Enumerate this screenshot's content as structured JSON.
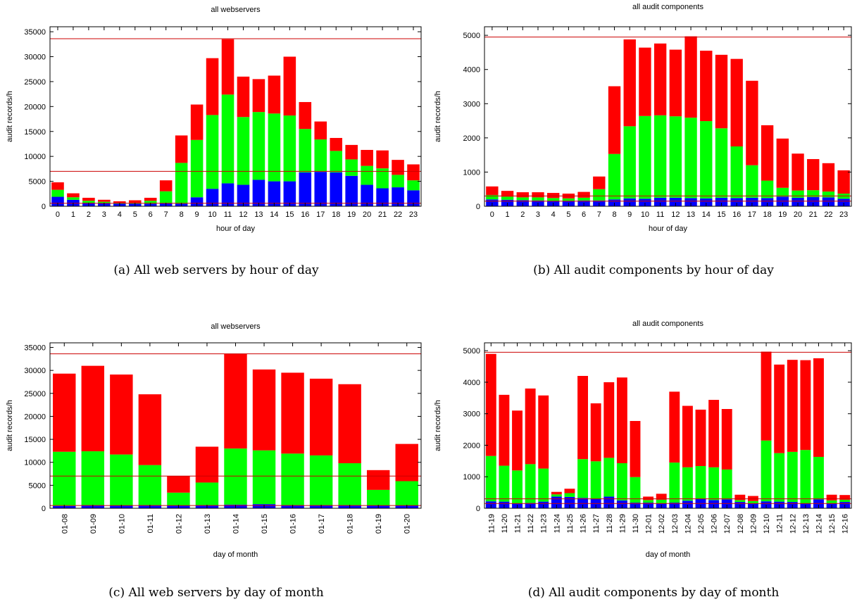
{
  "colors": {
    "series_top": "#ff0000",
    "series_middle": "#00ff00",
    "series_bottom": "#0000ff",
    "reference_line": "#cc0000"
  },
  "captions": {
    "a": "(a) All web servers by hour of day",
    "b": "(b) All audit components by hour of day",
    "c": "(c) All web servers by day of month",
    "d": "(d) All audit components by day of month"
  },
  "chart_data": [
    {
      "id": "a",
      "type": "bar",
      "stacked": true,
      "title": "all webservers",
      "xlabel": "hour of day",
      "ylabel": "audit records/h",
      "ylim": [
        0,
        36000
      ],
      "yticks": [
        0,
        5000,
        10000,
        15000,
        20000,
        25000,
        30000,
        35000
      ],
      "rotate_x_labels": false,
      "categories": [
        "0",
        "1",
        "2",
        "3",
        "4",
        "5",
        "6",
        "7",
        "8",
        "9",
        "10",
        "11",
        "12",
        "13",
        "14",
        "15",
        "16",
        "17",
        "18",
        "19",
        "20",
        "21",
        "22",
        "23"
      ],
      "series": [
        {
          "values": [
            1900,
            1300,
            700,
            600,
            500,
            500,
            500,
            600,
            500,
            1800,
            3500,
            4600,
            4300,
            5300,
            5000,
            5000,
            6800,
            6900,
            6800,
            6100,
            4300,
            3600,
            3800,
            3200
          ]
        },
        {
          "values": [
            1400,
            500,
            400,
            300,
            200,
            200,
            600,
            2400,
            8200,
            11500,
            14800,
            17800,
            13600,
            13600,
            13600,
            13200,
            8700,
            6500,
            4300,
            3300,
            3800,
            4000,
            2500,
            2000
          ]
        },
        {
          "values": [
            1500,
            800,
            600,
            400,
            300,
            500,
            600,
            2200,
            5500,
            7100,
            11400,
            11100,
            8100,
            6600,
            7600,
            11800,
            5400,
            3600,
            2600,
            2900,
            3200,
            3600,
            3000,
            3200
          ]
        }
      ],
      "reference_lines": [
        33600,
        7000,
        600
      ]
    },
    {
      "id": "b",
      "type": "bar",
      "stacked": true,
      "title": "all audit components",
      "xlabel": "hour of day",
      "ylabel": "audit records/h",
      "ylim": [
        0,
        5250
      ],
      "yticks": [
        0,
        1000,
        2000,
        3000,
        4000,
        5000
      ],
      "rotate_x_labels": false,
      "categories": [
        "0",
        "1",
        "2",
        "3",
        "4",
        "5",
        "6",
        "7",
        "8",
        "9",
        "10",
        "11",
        "12",
        "13",
        "14",
        "15",
        "16",
        "17",
        "18",
        "19",
        "20",
        "21",
        "22",
        "23"
      ],
      "series": [
        {
          "values": [
            200,
            190,
            180,
            170,
            160,
            160,
            170,
            170,
            200,
            230,
            220,
            250,
            250,
            240,
            230,
            250,
            240,
            250,
            240,
            280,
            250,
            270,
            260,
            220
          ]
        },
        {
          "values": [
            130,
            90,
            80,
            90,
            80,
            70,
            80,
            330,
            1330,
            2110,
            2420,
            2410,
            2380,
            2350,
            2260,
            2030,
            1510,
            950,
            510,
            260,
            210,
            200,
            170,
            150
          ]
        },
        {
          "values": [
            250,
            170,
            150,
            150,
            150,
            140,
            170,
            370,
            1980,
            2540,
            2000,
            2100,
            1950,
            2380,
            2060,
            2150,
            2560,
            2470,
            1620,
            1440,
            1080,
            910,
            830,
            680
          ]
        }
      ],
      "reference_lines": [
        4950,
        300,
        150
      ]
    },
    {
      "id": "c",
      "type": "bar",
      "stacked": true,
      "title": "all webservers",
      "xlabel": "day of month",
      "ylabel": "audit records/h",
      "ylim": [
        0,
        36000
      ],
      "yticks": [
        0,
        5000,
        10000,
        15000,
        20000,
        25000,
        30000,
        35000
      ],
      "rotate_x_labels": true,
      "categories": [
        "01-08",
        "01-09",
        "01-10",
        "01-11",
        "01-12",
        "01-13",
        "01-14",
        "01-15",
        "01-16",
        "01-17",
        "01-18",
        "01-19",
        "01-20"
      ],
      "series": [
        {
          "values": [
            500,
            700,
            600,
            700,
            600,
            700,
            800,
            900,
            700,
            700,
            700,
            600,
            600
          ]
        },
        {
          "values": [
            11800,
            11700,
            11100,
            8700,
            2800,
            4900,
            12200,
            11700,
            11200,
            10800,
            9100,
            3400,
            5300
          ]
        },
        {
          "values": [
            17000,
            18600,
            17400,
            15400,
            3600,
            7800,
            20600,
            17600,
            17600,
            16700,
            17200,
            4300,
            8100
          ]
        }
      ],
      "reference_lines": [
        33600,
        7000,
        600
      ]
    },
    {
      "id": "d",
      "type": "bar",
      "stacked": true,
      "title": "all audit components",
      "xlabel": "day of month",
      "ylabel": "audit records/h",
      "ylim": [
        0,
        5250
      ],
      "yticks": [
        0,
        1000,
        2000,
        3000,
        4000,
        5000
      ],
      "rotate_x_labels": true,
      "categories": [
        "11-19",
        "11-20",
        "11-21",
        "11-22",
        "11-23",
        "11-24",
        "11-25",
        "11-26",
        "11-27",
        "11-28",
        "11-29",
        "11-30",
        "12-01",
        "12-02",
        "12-03",
        "12-04",
        "12-05",
        "12-06",
        "12-07",
        "12-08",
        "12-09",
        "12-10",
        "12-11",
        "12-12",
        "12-13",
        "12-14",
        "12-15",
        "12-16"
      ],
      "series": [
        {
          "values": [
            220,
            210,
            150,
            170,
            210,
            370,
            360,
            330,
            300,
            370,
            250,
            180,
            180,
            160,
            180,
            240,
            300,
            260,
            280,
            200,
            160,
            220,
            210,
            200,
            150,
            280,
            160,
            200
          ]
        },
        {
          "values": [
            1440,
            1140,
            1050,
            1230,
            1050,
            70,
            120,
            1230,
            1190,
            1230,
            1180,
            810,
            80,
            110,
            1270,
            1060,
            1040,
            1040,
            950,
            60,
            70,
            1930,
            1540,
            1590,
            1700,
            1350,
            90,
            70
          ]
        },
        {
          "values": [
            3240,
            2250,
            1900,
            2400,
            2320,
            80,
            140,
            2640,
            1840,
            2400,
            2720,
            1780,
            110,
            190,
            2250,
            1950,
            1790,
            2140,
            1920,
            170,
            160,
            2820,
            2810,
            2920,
            2850,
            3130,
            180,
            150
          ]
        }
      ],
      "reference_lines": [
        4950,
        300,
        150
      ]
    }
  ]
}
